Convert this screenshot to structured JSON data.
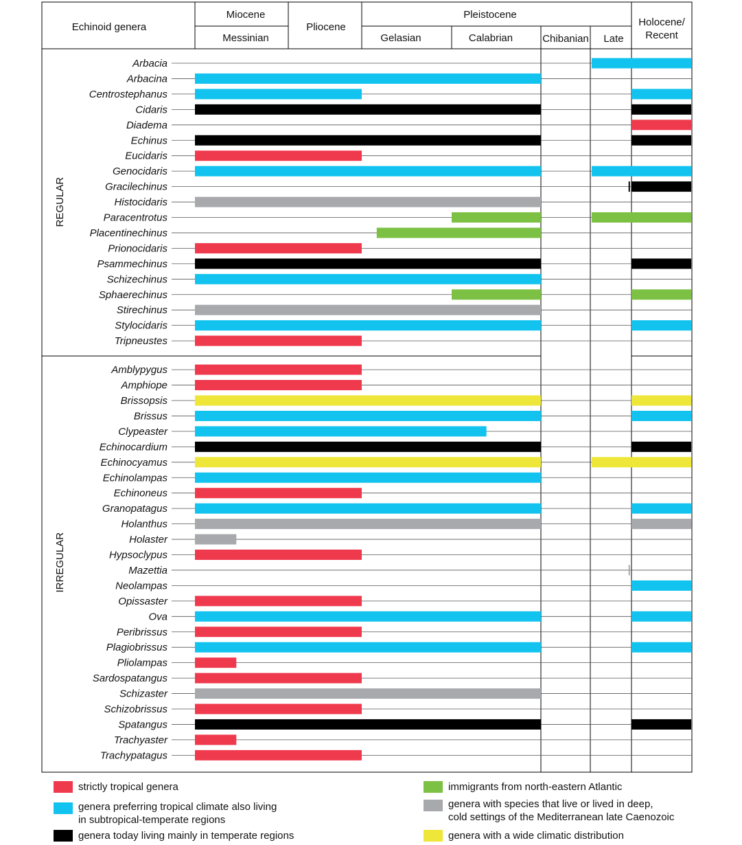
{
  "chart_data": {
    "type": "range-bar",
    "header": {
      "genera_label": "Echinoid genera",
      "miocene": "Miocene",
      "messinian": "Messinian",
      "pliocene": "Pliocene",
      "pleistocene": "Pleistocene",
      "gelasian": "Gelasian",
      "calabrian": "Calabrian",
      "chibanian": "Chibanian",
      "late": "Late",
      "holocene": "Holocene/\nRecent"
    },
    "intervals": [
      "Messinian",
      "Pliocene",
      "Gelasian",
      "Calabrian",
      "Chibanian",
      "Late",
      "Holocene/Recent"
    ],
    "groups": [
      {
        "label": "REGULAR",
        "genera": [
          {
            "name": "Arbacia",
            "category": "subtropical",
            "ranges": [
              [
                0.03,
                2.62
              ],
              [
                0.125,
                0
              ]
            ]
          },
          {
            "name": "Arbacina",
            "category": "subtropical",
            "ranges": [
              [
                7.25,
                0.774
              ]
            ]
          },
          {
            "name": "Centrostephanus",
            "category": "subtropical",
            "ranges": [
              [
                7.25,
                2.58
              ],
              [
                0.0117,
                0
              ]
            ]
          },
          {
            "name": "Cidaris",
            "category": "temperate",
            "ranges": [
              [
                7.25,
                0.774
              ],
              [
                0.0117,
                0
              ]
            ]
          },
          {
            "name": "Diadema",
            "category": "tropical",
            "ranges": [
              [
                0.0117,
                0
              ]
            ]
          },
          {
            "name": "Echinus",
            "category": "temperate",
            "ranges": [
              [
                7.25,
                0.774
              ],
              [
                0.0117,
                0
              ]
            ]
          },
          {
            "name": "Eucidaris",
            "category": "tropical",
            "ranges": [
              [
                7.25,
                2.58
              ]
            ]
          },
          {
            "name": "Genocidaris",
            "category": "subtropical",
            "ranges": [
              [
                7.25,
                0.774
              ],
              [
                0.125,
                0
              ]
            ]
          },
          {
            "name": "Gracilechinus",
            "category": "temperate",
            "ranges": [
              [
                0.02,
                0.774
              ],
              [
                0.0117,
                0
              ]
            ]
          },
          {
            "name": "Histocidaris",
            "category": "deep",
            "ranges": [
              [
                7.25,
                0.774
              ]
            ]
          },
          {
            "name": "Paracentrotus",
            "category": "atlantic",
            "ranges": [
              [
                1.8,
                0.774
              ],
              [
                0.125,
                0
              ]
            ]
          },
          {
            "name": "Placentinechinus",
            "category": "atlantic",
            "ranges": [
              [
                2.45,
                0.774
              ]
            ]
          },
          {
            "name": "Prionocidaris",
            "category": "tropical",
            "ranges": [
              [
                7.25,
                2.58
              ]
            ]
          },
          {
            "name": "Psammechinus",
            "category": "temperate",
            "ranges": [
              [
                7.25,
                0.774
              ],
              [
                0.0117,
                0
              ]
            ]
          },
          {
            "name": "Schizechinus",
            "category": "subtropical",
            "ranges": [
              [
                7.25,
                0.774
              ]
            ]
          },
          {
            "name": "Sphaerechinus",
            "category": "atlantic",
            "ranges": [
              [
                1.8,
                0.774
              ],
              [
                0.0117,
                0
              ]
            ]
          },
          {
            "name": "Stirechinus",
            "category": "deep",
            "ranges": [
              [
                7.25,
                0.774
              ]
            ]
          },
          {
            "name": "Stylocidaris",
            "category": "subtropical",
            "ranges": [
              [
                7.25,
                0.774
              ],
              [
                0.0117,
                0
              ]
            ]
          },
          {
            "name": "Tripneustes",
            "category": "tropical",
            "ranges": [
              [
                7.25,
                2.58
              ]
            ]
          }
        ]
      },
      {
        "label": "IRREGULAR",
        "genera": [
          {
            "name": "Amblypygus",
            "category": "tropical",
            "ranges": [
              [
                7.25,
                2.58
              ]
            ]
          },
          {
            "name": "Amphiope",
            "category": "tropical",
            "ranges": [
              [
                7.25,
                2.58
              ]
            ]
          },
          {
            "name": "Brissopsis",
            "category": "wide",
            "ranges": [
              [
                7.25,
                0.774
              ],
              [
                0.0117,
                0
              ]
            ]
          },
          {
            "name": "Brissus",
            "category": "subtropical",
            "ranges": [
              [
                7.25,
                0.774
              ],
              [
                0.0117,
                0
              ]
            ]
          },
          {
            "name": "Clypeaster",
            "category": "subtropical",
            "ranges": [
              [
                7.25,
                1.4
              ]
            ]
          },
          {
            "name": "Echinocardium",
            "category": "temperate",
            "ranges": [
              [
                7.25,
                0.774
              ],
              [
                0.0117,
                0
              ]
            ]
          },
          {
            "name": "Echinocyamus",
            "category": "wide",
            "ranges": [
              [
                7.25,
                0.774
              ],
              [
                0.125,
                0
              ]
            ]
          },
          {
            "name": "Echinolampas",
            "category": "subtropical",
            "ranges": [
              [
                7.25,
                0.774
              ]
            ]
          },
          {
            "name": "Echinoneus",
            "category": "tropical",
            "ranges": [
              [
                7.25,
                2.58
              ]
            ]
          },
          {
            "name": "Granopatagus",
            "category": "subtropical",
            "ranges": [
              [
                7.25,
                0.774
              ],
              [
                0.0117,
                0
              ]
            ]
          },
          {
            "name": "Holanthus",
            "category": "deep",
            "ranges": [
              [
                7.25,
                0.774
              ],
              [
                0.0117,
                0
              ]
            ]
          },
          {
            "name": "Holaster",
            "category": "deep",
            "ranges": [
              [
                7.25,
                6.4
              ]
            ]
          },
          {
            "name": "Hypsoclypus",
            "category": "tropical",
            "ranges": [
              [
                7.25,
                2.58
              ]
            ]
          },
          {
            "name": "Mazettia",
            "category": "deep",
            "ranges": [
              [
                0.02,
                2.62
              ]
            ]
          },
          {
            "name": "Neolampas",
            "category": "subtropical",
            "ranges": [
              [
                0.0117,
                0
              ]
            ]
          },
          {
            "name": "Opissaster",
            "category": "tropical",
            "ranges": [
              [
                7.25,
                2.58
              ]
            ]
          },
          {
            "name": "Ova",
            "category": "subtropical",
            "ranges": [
              [
                7.25,
                0.774
              ],
              [
                0.0117,
                0
              ]
            ]
          },
          {
            "name": "Peribrissus",
            "category": "tropical",
            "ranges": [
              [
                7.25,
                2.58
              ]
            ]
          },
          {
            "name": "Plagiobrissus",
            "category": "subtropical",
            "ranges": [
              [
                7.25,
                0.774
              ],
              [
                0.0117,
                0
              ]
            ]
          },
          {
            "name": "Pliolampas",
            "category": "tropical",
            "ranges": [
              [
                7.25,
                6.4
              ]
            ]
          },
          {
            "name": "Sardospatangus",
            "category": "tropical",
            "ranges": [
              [
                7.25,
                2.58
              ]
            ]
          },
          {
            "name": "Schizaster",
            "category": "deep",
            "ranges": [
              [
                7.25,
                0.774
              ]
            ]
          },
          {
            "name": "Schizobrissus",
            "category": "tropical",
            "ranges": [
              [
                7.25,
                2.58
              ]
            ]
          },
          {
            "name": "Spatangus",
            "category": "temperate",
            "ranges": [
              [
                7.25,
                0.774
              ],
              [
                0.0117,
                0
              ]
            ]
          },
          {
            "name": "Trachyaster",
            "category": "tropical",
            "ranges": [
              [
                7.25,
                6.4
              ]
            ]
          },
          {
            "name": "Trachypatagus",
            "category": "tropical",
            "ranges": [
              [
                7.25,
                2.58
              ]
            ]
          }
        ]
      }
    ],
    "categories": {
      "tropical": {
        "color": "#ef3a4e",
        "label": "strictly tropical genera"
      },
      "subtropical": {
        "color": "#12c3ef",
        "label": "genera preferring tropical climate also living\nin subtropical-temperate regions"
      },
      "temperate": {
        "color": "#000000",
        "label": "genera today living mainly in temperate regions"
      },
      "atlantic": {
        "color": "#7cc144",
        "label": "immigrants from north-eastern Atlantic"
      },
      "deep": {
        "color": "#a8a9ad",
        "label": "genera with species that live or lived in deep,\ncold settings of the Mediterranean late Caenozoic"
      },
      "wide": {
        "color": "#eee638",
        "label": "genera with a wide climatic distribution"
      }
    },
    "legend_order": [
      "tropical",
      "subtropical",
      "temperate",
      "atlantic",
      "deep",
      "wide"
    ]
  }
}
